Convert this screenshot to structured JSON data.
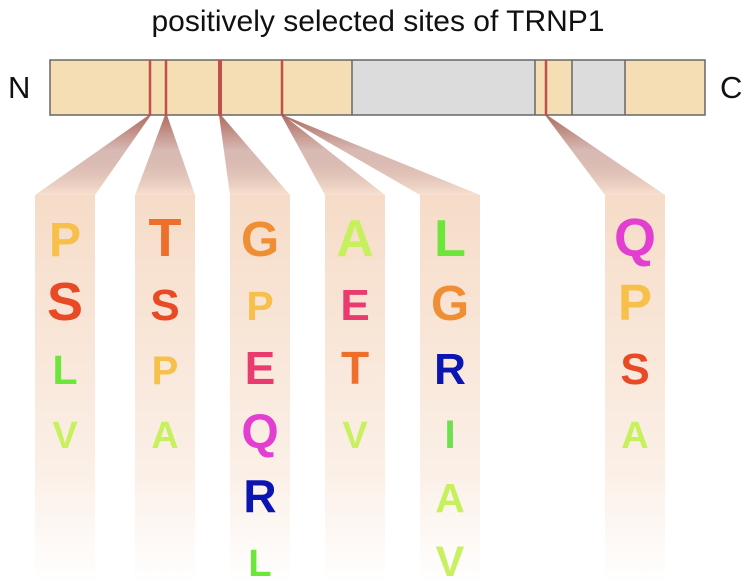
{
  "title": "positively selected sites of TRNP1",
  "n_terminus": "N",
  "c_terminus": "C",
  "colors": {
    "domain_fill": "#f5deb3",
    "disordered_fill": "#dcdcdc",
    "outline": "#666666",
    "site_line": "#c0504d",
    "fan_color": "#a9665a",
    "column_color": "#f6dcc8"
  },
  "residue_colors": {
    "P": "#f7c04a",
    "S": "#e84a26",
    "L": "#6de63c",
    "V": "#c8f060",
    "T": "#ee6f2c",
    "A": "#c6f05c",
    "G": "#ef8e34",
    "E": "#e93b6f",
    "Q": "#e23fd1",
    "R": "#0b15b1",
    "I": "#6fe04f"
  },
  "sites": [
    {
      "residues": [
        "P",
        "S",
        "L",
        "V"
      ],
      "weights": [
        0.8,
        1.0,
        0.6,
        0.5
      ]
    },
    {
      "residues": [
        "T",
        "S",
        "P",
        "A"
      ],
      "weights": [
        1.0,
        0.7,
        0.55,
        0.5
      ]
    },
    {
      "residues": [
        "G",
        "P",
        "E",
        "Q",
        "R",
        "L"
      ],
      "weights": [
        0.85,
        0.6,
        0.75,
        0.8,
        0.75,
        0.5
      ]
    },
    {
      "residues": [
        "A",
        "E",
        "T",
        "V"
      ],
      "weights": [
        0.95,
        0.7,
        0.75,
        0.5
      ]
    },
    {
      "residues": [
        "L",
        "G",
        "R",
        "I",
        "A",
        "V"
      ],
      "weights": [
        0.95,
        0.85,
        0.7,
        0.55,
        0.6,
        0.65
      ]
    },
    {
      "residues": [
        "Q",
        "P",
        "S",
        "A"
      ],
      "weights": [
        1.0,
        0.9,
        0.7,
        0.5
      ]
    }
  ]
}
